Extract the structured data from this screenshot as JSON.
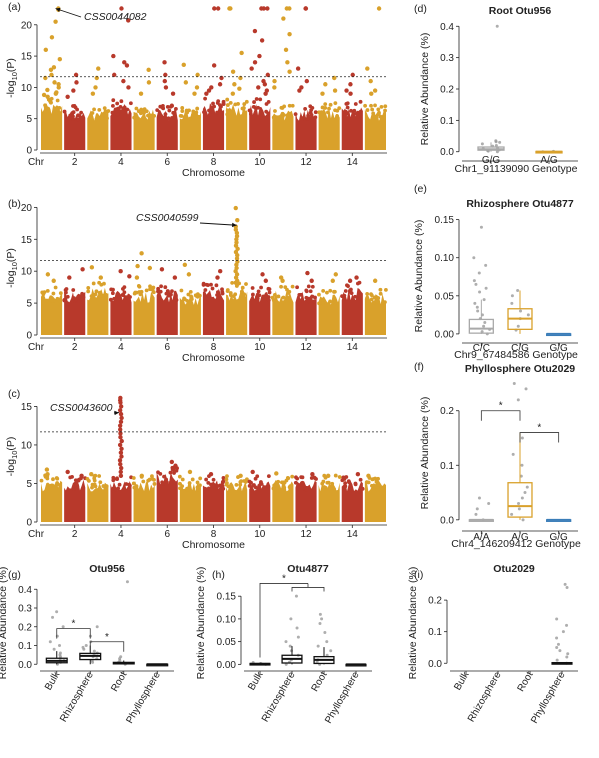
{
  "colors": {
    "gold": "#D9A12B",
    "red": "#B8392B",
    "gray": "#A9A9A9",
    "blue": "#3A7DB8",
    "black": "#111111"
  },
  "chart_data": [
    {
      "panel": "(a)",
      "type": "scatter",
      "subtype": "manhattan",
      "ylabel_main": "-log",
      "ylabel_sub": "10",
      "ylabel_tail": "(P)",
      "xlabel": "Chromosome",
      "x_prefix": "Chr",
      "x_ticks": [
        "2",
        "4",
        "6",
        "8",
        "10",
        "12",
        "14"
      ],
      "ylim": [
        0,
        23
      ],
      "y_ticks": [
        0,
        5,
        10,
        15,
        20
      ],
      "threshold": 11.7,
      "colors_alternate": [
        "#D9A12B",
        "#B8392B"
      ],
      "chromosomes": [
        1,
        2,
        3,
        4,
        5,
        6,
        7,
        8,
        9,
        10,
        11,
        12,
        13,
        14,
        15
      ],
      "baseline_max": [
        7.5,
        6.5,
        6.5,
        7.5,
        6.5,
        6.5,
        6.5,
        7.5,
        7.5,
        7.5,
        6.5,
        6.5,
        7.0,
        7.0,
        6.5
      ],
      "peaks": [
        {
          "chr": 1,
          "values": [
            22.6,
            22.4,
            20.5,
            18.0,
            16.0,
            14.5,
            13.2,
            12.8,
            12.0,
            11.5,
            10.8,
            10.5,
            10,
            9.6,
            9.2,
            9,
            8.8,
            8.5
          ]
        },
        {
          "chr": 2,
          "values": [
            12.0,
            10.8,
            9.5,
            8.5
          ]
        },
        {
          "chr": 3,
          "values": [
            13.0,
            11.5,
            10.0,
            9.0
          ]
        },
        {
          "chr": 4,
          "values": [
            22.6,
            20.7,
            15.0,
            14.0,
            13.5,
            12.0,
            11.0,
            10.0
          ]
        },
        {
          "chr": 5,
          "values": [
            12.8,
            10.8,
            9.0
          ]
        },
        {
          "chr": 6,
          "values": [
            14.0,
            12.0,
            11.0,
            10.0,
            9.0
          ]
        },
        {
          "chr": 7,
          "values": [
            13.6,
            12.0,
            10.8,
            10.0,
            9.0
          ]
        },
        {
          "chr": 8,
          "values": [
            22.6,
            22.6,
            13.5,
            11.5,
            10.5,
            10.0,
            9.5,
            9.0
          ]
        },
        {
          "chr": 9,
          "values": [
            22.6,
            22.6,
            15.5,
            12.5,
            11.5,
            10.5,
            9.8,
            9.0
          ]
        },
        {
          "chr": 10,
          "values": [
            22.6,
            22.6,
            22.6,
            19.0,
            17.5,
            15.0,
            14.0,
            13.0,
            12.0,
            11.0,
            10.5,
            10.0,
            9.5,
            9.0
          ]
        },
        {
          "chr": 11,
          "values": [
            22.6,
            22.6,
            21.0,
            18.5,
            16.0,
            14.0,
            12.5,
            11.0,
            10.0
          ]
        },
        {
          "chr": 12,
          "values": [
            22.6,
            22.6,
            13.0,
            11.0,
            10.0,
            9.5
          ]
        },
        {
          "chr": 13,
          "values": [
            11.5,
            10.5,
            9.5,
            9.0
          ]
        },
        {
          "chr": 14,
          "values": [
            12.0,
            10.5,
            9.5,
            9.0
          ]
        },
        {
          "chr": 15,
          "values": [
            22.6,
            13.0,
            11.0,
            9.5,
            9.0
          ]
        }
      ],
      "annotation": "CSS0044082",
      "annotation_chr": 1
    },
    {
      "panel": "(b)",
      "type": "scatter",
      "subtype": "manhattan",
      "ylabel_main": "-log",
      "ylabel_sub": "10",
      "ylabel_tail": "(P)",
      "xlabel": "Chromosome",
      "x_prefix": "Chr",
      "x_ticks": [
        "2",
        "4",
        "6",
        "8",
        "10",
        "12",
        "14"
      ],
      "ylim": [
        0,
        21
      ],
      "y_ticks": [
        0,
        5,
        10,
        15,
        20
      ],
      "threshold": 11.7,
      "colors_alternate": [
        "#D9A12B",
        "#B8392B"
      ],
      "chromosomes": [
        1,
        2,
        3,
        4,
        5,
        6,
        7,
        8,
        9,
        10,
        11,
        12,
        13,
        14,
        15
      ],
      "baseline_max": [
        7.0,
        7.0,
        7.5,
        7.0,
        7.0,
        7.0,
        6.5,
        7.5,
        7.5,
        7.0,
        7.0,
        7.0,
        6.5,
        7.5,
        6.5
      ],
      "peaks": [
        {
          "chr": 1,
          "values": [
            9.5,
            8.5
          ]
        },
        {
          "chr": 2,
          "values": [
            10.3,
            9.0
          ]
        },
        {
          "chr": 3,
          "values": [
            10.6,
            9.0
          ]
        },
        {
          "chr": 4,
          "values": [
            10.0,
            9.2
          ]
        },
        {
          "chr": 5,
          "values": [
            12.8,
            10.8,
            10.5,
            9.0
          ]
        },
        {
          "chr": 6,
          "values": [
            10.3,
            9.0
          ]
        },
        {
          "chr": 7,
          "values": [
            11.0,
            9.5
          ]
        },
        {
          "chr": 8,
          "values": [
            10.0,
            9.0
          ]
        },
        {
          "chr": 9,
          "values": [
            19.9,
            18.0,
            17.0,
            16.5,
            16.0,
            15.5,
            15.0,
            14.5,
            14.0,
            13.5,
            13.0,
            12.5,
            12.0,
            11.5,
            11.0,
            10.5,
            10.0,
            9.5,
            9.0,
            8.5,
            8.2,
            8.0
          ]
        },
        {
          "chr": 10,
          "values": [
            9.5,
            8.5
          ]
        },
        {
          "chr": 11,
          "values": [
            9.0,
            8.5
          ]
        },
        {
          "chr": 12,
          "values": [
            9.7,
            8.5
          ]
        },
        {
          "chr": 13,
          "values": [
            9.5,
            8.5
          ]
        },
        {
          "chr": 14,
          "values": [
            9.0,
            8.5
          ]
        },
        {
          "chr": 15,
          "values": [
            8.5
          ]
        }
      ],
      "annotation": "CSS0040599",
      "annotation_chr": 9
    },
    {
      "panel": "(c)",
      "type": "scatter",
      "subtype": "manhattan",
      "ylabel_main": "-log",
      "ylabel_sub": "10",
      "ylabel_tail": "(P)",
      "xlabel": "Chromosome",
      "x_prefix": "Chr",
      "x_ticks": [
        "2",
        "4",
        "6",
        "8",
        "10",
        "12",
        "14"
      ],
      "ylim": [
        0,
        17
      ],
      "y_ticks": [
        0,
        5,
        10,
        15
      ],
      "threshold": 11.7,
      "colors_alternate": [
        "#D9A12B",
        "#B8392B"
      ],
      "chromosomes": [
        1,
        2,
        3,
        4,
        5,
        6,
        7,
        8,
        9,
        10,
        11,
        12,
        13,
        14,
        15
      ],
      "baseline_max": [
        5.5,
        5.5,
        5.5,
        5.5,
        5.5,
        6.5,
        5.5,
        5.5,
        5.5,
        5.5,
        5.5,
        5.5,
        5.5,
        5.5,
        5.5
      ],
      "peaks": [
        {
          "chr": 1,
          "values": [
            6.8,
            6.2
          ]
        },
        {
          "chr": 2,
          "values": [
            6.5,
            6.0
          ]
        },
        {
          "chr": 3,
          "values": [
            6.2
          ]
        },
        {
          "chr": 4,
          "values": [
            16.1,
            15.8,
            15.5,
            15.0,
            14.5,
            14.0,
            13.5,
            13.0,
            12.5,
            12.0,
            11.5,
            11.0,
            10.5,
            10.0,
            9.5,
            9.0,
            8.5,
            8.0,
            7.5,
            7.0,
            6.5,
            6.0
          ]
        },
        {
          "chr": 5,
          "values": [
            6.0
          ]
        },
        {
          "chr": 6,
          "values": [
            7.8,
            7.3,
            6.8
          ]
        },
        {
          "chr": 7,
          "values": [
            6.5
          ]
        },
        {
          "chr": 8,
          "values": [
            6.2
          ]
        },
        {
          "chr": 9,
          "values": [
            6.0
          ]
        },
        {
          "chr": 10,
          "values": [
            6.5
          ]
        },
        {
          "chr": 11,
          "values": [
            6.3
          ]
        },
        {
          "chr": 12,
          "values": [
            6.2
          ]
        },
        {
          "chr": 13,
          "values": [
            6.0
          ]
        },
        {
          "chr": 14,
          "values": [
            6.2
          ]
        },
        {
          "chr": 15,
          "values": [
            6.0
          ]
        }
      ],
      "annotation": "CSS0043600",
      "annotation_chr": 4
    },
    {
      "panel": "(d)",
      "type": "box",
      "title": "Root Otu956",
      "ylabel": "Relative Abundance (%)",
      "xlabel": "Chr1_91139090 Genotype",
      "categories": [
        "G/G",
        "A/G"
      ],
      "colors": [
        "#A9A9A9",
        "#D9A12B"
      ],
      "ylim": [
        -0.02,
        0.42
      ],
      "y_ticks": [
        "0.0",
        "0.1",
        "0.2",
        "0.3",
        "0.4"
      ],
      "boxes": [
        {
          "q1": 0.005,
          "median": 0.008,
          "q3": 0.015,
          "whisker_lo": 0.0,
          "whisker_hi": 0.03,
          "points": [
            0.0,
            0.002,
            0.004,
            0.006,
            0.01,
            0.012,
            0.018,
            0.02,
            0.025,
            0.03,
            0.032,
            0.035,
            0.4
          ]
        },
        {
          "q1": 0.0,
          "median": 0.0,
          "q3": 0.001,
          "whisker_lo": 0.0,
          "whisker_hi": 0.002,
          "points": [
            0.0,
            0.0,
            0.001
          ]
        }
      ]
    },
    {
      "panel": "(e)",
      "type": "box",
      "title": "Rhizosphere Otu4877",
      "ylabel": "Relative Abundance (%)",
      "xlabel": "Chr9_67484586 Genotype",
      "categories": [
        "C/C",
        "C/G",
        "G/G"
      ],
      "colors": [
        "#A9A9A9",
        "#D9A12B",
        "#3A7DB8"
      ],
      "ylim": [
        -0.008,
        0.16
      ],
      "y_ticks": [
        "0.00",
        "0.05",
        "0.10",
        "0.15"
      ],
      "boxes": [
        {
          "q1": 0.001,
          "median": 0.007,
          "q3": 0.019,
          "whisker_lo": 0.0,
          "whisker_hi": 0.045,
          "points": [
            0.0,
            0.003,
            0.006,
            0.01,
            0.015,
            0.02,
            0.025,
            0.03,
            0.035,
            0.04,
            0.045,
            0.055,
            0.06,
            0.065,
            0.07,
            0.08,
            0.09,
            0.1,
            0.14
          ]
        },
        {
          "q1": 0.006,
          "median": 0.02,
          "q3": 0.033,
          "whisker_lo": 0.0,
          "whisker_hi": 0.057,
          "points": [
            0.005,
            0.01,
            0.02,
            0.025,
            0.03,
            0.04,
            0.05,
            0.057
          ]
        },
        {
          "q1": 0.0,
          "median": 0.0,
          "q3": 0.0,
          "whisker_lo": 0.0,
          "whisker_hi": 0.0,
          "points": []
        }
      ]
    },
    {
      "panel": "(f)",
      "type": "box",
      "title": "Phyllosphere Otu2029",
      "ylabel": "Relative Abundance (%)",
      "xlabel": "Chr4_146209412 Genotype",
      "categories": [
        "A/A",
        "A/G",
        "G/G"
      ],
      "colors": [
        "#A9A9A9",
        "#D9A12B",
        "#3A7DB8"
      ],
      "ylim": [
        -0.015,
        0.26
      ],
      "y_ticks": [
        "0.0",
        "0.1",
        "0.2"
      ],
      "boxes": [
        {
          "q1": 0.0,
          "median": 0.0,
          "q3": 0.0,
          "whisker_lo": 0.0,
          "whisker_hi": 0.0,
          "points": [
            0.0,
            0.01,
            0.02,
            0.03,
            0.04
          ]
        },
        {
          "q1": 0.005,
          "median": 0.025,
          "q3": 0.068,
          "whisker_lo": 0.0,
          "whisker_hi": 0.16,
          "points": [
            0.0,
            0.01,
            0.02,
            0.03,
            0.04,
            0.05,
            0.06,
            0.08,
            0.1,
            0.12,
            0.15,
            0.22,
            0.24,
            0.25
          ]
        },
        {
          "q1": 0.0,
          "median": 0.0,
          "q3": 0.0,
          "whisker_lo": 0.0,
          "whisker_hi": 0.0,
          "points": []
        }
      ],
      "significance": [
        {
          "from": 0,
          "to": 1,
          "y": 0.2,
          "label": "*"
        },
        {
          "from": 1,
          "to": 2,
          "y": 0.16,
          "label": "*"
        }
      ]
    },
    {
      "panel": "(g)",
      "type": "box",
      "title": "Otu956",
      "ylabel": "Relative Abundance (%)",
      "categories": [
        "Bulk",
        "Rhizosphere",
        "Root",
        "Phyllosphere"
      ],
      "colors": [
        "#111111",
        "#111111",
        "#111111",
        "#111111"
      ],
      "ylim": [
        -0.02,
        0.46
      ],
      "y_ticks": [
        "0.0",
        "0.1",
        "0.2",
        "0.3",
        "0.4"
      ],
      "boxes": [
        {
          "q1": 0.008,
          "median": 0.018,
          "q3": 0.032,
          "whisker_lo": 0.0,
          "whisker_hi": 0.07,
          "points": [
            0.0,
            0.01,
            0.02,
            0.03,
            0.04,
            0.05,
            0.06,
            0.08,
            0.1,
            0.12,
            0.15,
            0.2,
            0.25,
            0.28
          ]
        },
        {
          "q1": 0.025,
          "median": 0.045,
          "q3": 0.058,
          "whisker_lo": 0.0,
          "whisker_hi": 0.1,
          "points": [
            0.01,
            0.02,
            0.03,
            0.04,
            0.05,
            0.06,
            0.07,
            0.08,
            0.09,
            0.1,
            0.12,
            0.15,
            0.2
          ]
        },
        {
          "q1": 0.002,
          "median": 0.005,
          "q3": 0.01,
          "whisker_lo": 0.0,
          "whisker_hi": 0.02,
          "points": [
            0.0,
            0.005,
            0.01,
            0.02,
            0.03,
            0.04,
            0.44
          ]
        },
        {
          "q1": 0.0,
          "median": 0.0,
          "q3": 0.0,
          "whisker_lo": 0.0,
          "whisker_hi": 0.0,
          "points": []
        }
      ],
      "significance": [
        {
          "from": 0,
          "to": 1,
          "y": 0.19,
          "label": "*"
        },
        {
          "from": 1,
          "to": 2,
          "y": 0.12,
          "label": "*"
        }
      ]
    },
    {
      "panel": "(h)",
      "type": "box",
      "title": "Otu4877",
      "ylabel": "Relative Abundance (%)",
      "categories": [
        "Bulk",
        "Rhizosphere",
        "Root",
        "Phyllosphere"
      ],
      "colors": [
        "#111111",
        "#111111",
        "#111111",
        "#111111"
      ],
      "ylim": [
        -0.008,
        0.19
      ],
      "y_ticks": [
        "0.00",
        "0.05",
        "0.10",
        "0.15"
      ],
      "boxes": [
        {
          "q1": 0.0,
          "median": 0.001,
          "q3": 0.002,
          "whisker_lo": 0.0,
          "whisker_hi": 0.004,
          "points": [
            0.0,
            0.002,
            0.004
          ]
        },
        {
          "q1": 0.003,
          "median": 0.012,
          "q3": 0.02,
          "whisker_lo": 0.0,
          "whisker_hi": 0.04,
          "points": [
            0.0,
            0.005,
            0.01,
            0.02,
            0.03,
            0.04,
            0.05,
            0.06,
            0.08,
            0.1,
            0.15
          ]
        },
        {
          "q1": 0.002,
          "median": 0.01,
          "q3": 0.017,
          "whisker_lo": 0.0,
          "whisker_hi": 0.038,
          "points": [
            0.0,
            0.005,
            0.01,
            0.02,
            0.03,
            0.04,
            0.05,
            0.07,
            0.09,
            0.1,
            0.11
          ]
        },
        {
          "q1": 0.0,
          "median": 0.0,
          "q3": 0.0,
          "whisker_lo": 0.0,
          "whisker_hi": 0.0,
          "points": []
        }
      ],
      "bracket": {
        "from": 0,
        "to": [
          1,
          2
        ],
        "y": 0.178,
        "label": "*"
      }
    },
    {
      "panel": "(i)",
      "type": "box",
      "title": "Otu2029",
      "ylabel": "Relative Abundance (%)",
      "categories": [
        "Bulk",
        "Rhizosphere",
        "Root",
        "Phyllosphere"
      ],
      "colors": [
        "#111111",
        "#111111",
        "#111111",
        "#111111"
      ],
      "ylim": [
        -0.015,
        0.27
      ],
      "y_ticks": [
        "0.0",
        "0.1",
        "0.2"
      ],
      "boxes": [
        {
          "q1": 0.0,
          "median": 0.0,
          "q3": 0.0,
          "whisker_lo": 0.0,
          "whisker_hi": 0.0,
          "points": [],
          "hidden": true
        },
        {
          "q1": 0.0,
          "median": 0.0,
          "q3": 0.0,
          "whisker_lo": 0.0,
          "whisker_hi": 0.0,
          "points": [],
          "hidden": true
        },
        {
          "q1": 0.0,
          "median": 0.0,
          "q3": 0.0,
          "whisker_lo": 0.0,
          "whisker_hi": 0.0,
          "points": [],
          "hidden": true
        },
        {
          "q1": 0.0,
          "median": 0.0,
          "q3": 0.002,
          "whisker_lo": 0.0,
          "whisker_hi": 0.004,
          "points": [
            0.0,
            0.01,
            0.02,
            0.03,
            0.04,
            0.05,
            0.06,
            0.08,
            0.1,
            0.12,
            0.14,
            0.24,
            0.25
          ]
        }
      ]
    }
  ]
}
